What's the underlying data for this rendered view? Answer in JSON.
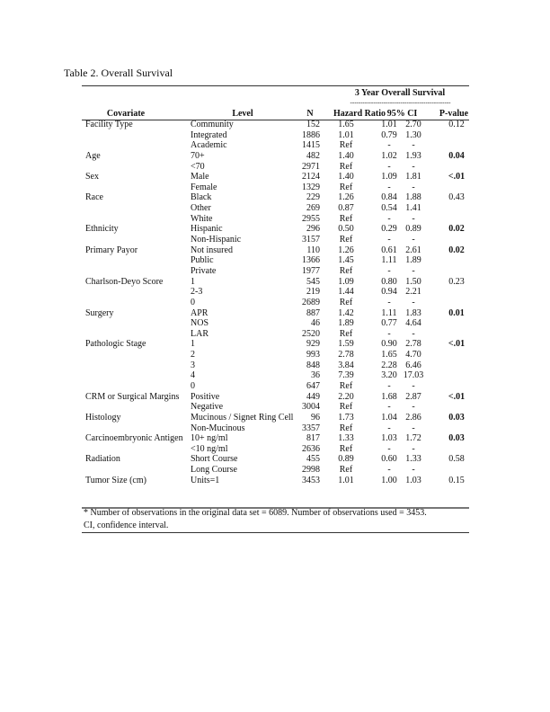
{
  "title": "Table 2. Overall Survival",
  "group_header": "3 Year Overall Survival",
  "group_dashes": "------------------------------------------------",
  "columns": {
    "covariate": "Covariate",
    "level": "Level",
    "n": "N",
    "hr": "Hazard Ratio",
    "ci": "95% CI",
    "p": "P-value"
  },
  "rows": [
    {
      "cov": "Facility Type",
      "level": "Community",
      "n": "152",
      "hr": "1.65",
      "lo": "1.01",
      "hi": "2.70",
      "p": "0.12",
      "bold": false
    },
    {
      "cov": "",
      "level": "Integrated",
      "n": "1886",
      "hr": "1.01",
      "lo": "0.79",
      "hi": "1.30",
      "p": "",
      "bold": false
    },
    {
      "cov": "",
      "level": "Academic",
      "n": "1415",
      "hr": "Ref",
      "lo": "-",
      "hi": "-",
      "p": "",
      "bold": false
    },
    {
      "cov": "Age",
      "level": "70+",
      "n": "482",
      "hr": "1.40",
      "lo": "1.02",
      "hi": "1.93",
      "p": "0.04",
      "bold": true
    },
    {
      "cov": "",
      "level": "<70",
      "n": "2971",
      "hr": "Ref",
      "lo": "-",
      "hi": "-",
      "p": "",
      "bold": false
    },
    {
      "cov": "Sex",
      "level": "Male",
      "n": "2124",
      "hr": "1.40",
      "lo": "1.09",
      "hi": "1.81",
      "p": "<.01",
      "bold": true
    },
    {
      "cov": "",
      "level": "Female",
      "n": "1329",
      "hr": "Ref",
      "lo": "-",
      "hi": "-",
      "p": "",
      "bold": false
    },
    {
      "cov": "Race",
      "level": "Black",
      "n": "229",
      "hr": "1.26",
      "lo": "0.84",
      "hi": "1.88",
      "p": "0.43",
      "bold": false
    },
    {
      "cov": "",
      "level": "Other",
      "n": "269",
      "hr": "0.87",
      "lo": "0.54",
      "hi": "1.41",
      "p": "",
      "bold": false
    },
    {
      "cov": "",
      "level": "White",
      "n": "2955",
      "hr": "Ref",
      "lo": "-",
      "hi": "-",
      "p": "",
      "bold": false
    },
    {
      "cov": "Ethnicity",
      "level": "Hispanic",
      "n": "296",
      "hr": "0.50",
      "lo": "0.29",
      "hi": "0.89",
      "p": "0.02",
      "bold": true
    },
    {
      "cov": "",
      "level": "Non-Hispanic",
      "n": "3157",
      "hr": "Ref",
      "lo": "-",
      "hi": "-",
      "p": "",
      "bold": false
    },
    {
      "cov": "Primary Payor",
      "level": "Not insured",
      "n": "110",
      "hr": "1.26",
      "lo": "0.61",
      "hi": "2.61",
      "p": "0.02",
      "bold": true
    },
    {
      "cov": "",
      "level": "Public",
      "n": "1366",
      "hr": "1.45",
      "lo": "1.11",
      "hi": "1.89",
      "p": "",
      "bold": false
    },
    {
      "cov": "",
      "level": "Private",
      "n": "1977",
      "hr": "Ref",
      "lo": "-",
      "hi": "-",
      "p": "",
      "bold": false
    },
    {
      "cov": "Charlson-Deyo Score",
      "level": "1",
      "n": "545",
      "hr": "1.09",
      "lo": "0.80",
      "hi": "1.50",
      "p": "0.23",
      "bold": false
    },
    {
      "cov": "",
      "level": "2-3",
      "n": "219",
      "hr": "1.44",
      "lo": "0.94",
      "hi": "2.21",
      "p": "",
      "bold": false
    },
    {
      "cov": "",
      "level": "0",
      "n": "2689",
      "hr": "Ref",
      "lo": "-",
      "hi": "-",
      "p": "",
      "bold": false
    },
    {
      "cov": "Surgery",
      "level": "APR",
      "n": "887",
      "hr": "1.42",
      "lo": "1.11",
      "hi": "1.83",
      "p": "0.01",
      "bold": true
    },
    {
      "cov": "",
      "level": "NOS",
      "n": "46",
      "hr": "1.89",
      "lo": "0.77",
      "hi": "4.64",
      "p": "",
      "bold": false
    },
    {
      "cov": "",
      "level": "LAR",
      "n": "2520",
      "hr": "Ref",
      "lo": "-",
      "hi": "-",
      "p": "",
      "bold": false
    },
    {
      "cov": "Pathologic Stage",
      "level": "1",
      "n": "929",
      "hr": "1.59",
      "lo": "0.90",
      "hi": "2.78",
      "p": "<.01",
      "bold": true
    },
    {
      "cov": "",
      "level": "2",
      "n": "993",
      "hr": "2.78",
      "lo": "1.65",
      "hi": "4.70",
      "p": "",
      "bold": false
    },
    {
      "cov": "",
      "level": "3",
      "n": "848",
      "hr": "3.84",
      "lo": "2.28",
      "hi": "6.46",
      "p": "",
      "bold": false
    },
    {
      "cov": "",
      "level": "4",
      "n": "36",
      "hr": "7.39",
      "lo": "3.20",
      "hi": "17.03",
      "p": "",
      "bold": false
    },
    {
      "cov": "",
      "level": "0",
      "n": "647",
      "hr": "Ref",
      "lo": "-",
      "hi": "-",
      "p": "",
      "bold": false
    },
    {
      "cov": "CRM or Surgical Margins",
      "level": "Positive",
      "n": "449",
      "hr": "2.20",
      "lo": "1.68",
      "hi": "2.87",
      "p": "<.01",
      "bold": true
    },
    {
      "cov": "",
      "level": "Negative",
      "n": "3004",
      "hr": "Ref",
      "lo": "-",
      "hi": "-",
      "p": "",
      "bold": false
    },
    {
      "cov": "Histology",
      "level": "Mucinous / Signet Ring Cell",
      "n": "96",
      "hr": "1.73",
      "lo": "1.04",
      "hi": "2.86",
      "p": "0.03",
      "bold": true
    },
    {
      "cov": "",
      "level": "Non-Mucinous",
      "n": "3357",
      "hr": "Ref",
      "lo": "-",
      "hi": "-",
      "p": "",
      "bold": false
    },
    {
      "cov": "Carcinoembryonic Antigen",
      "level": "10+ ng/ml",
      "n": "817",
      "hr": "1.33",
      "lo": "1.03",
      "hi": "1.72",
      "p": "0.03",
      "bold": true
    },
    {
      "cov": "",
      "level": "<10 ng/ml",
      "n": "2636",
      "hr": "Ref",
      "lo": "-",
      "hi": "-",
      "p": "",
      "bold": false
    },
    {
      "cov": "Radiation",
      "level": "Short Course",
      "n": "455",
      "hr": "0.89",
      "lo": "0.60",
      "hi": "1.33",
      "p": "0.58",
      "bold": false
    },
    {
      "cov": "",
      "level": "Long Course",
      "n": "2998",
      "hr": "Ref",
      "lo": "-",
      "hi": "-",
      "p": "",
      "bold": false
    },
    {
      "cov": "Tumor Size (cm)",
      "level": "Units=1",
      "n": "3453",
      "hr": "1.01",
      "lo": "1.00",
      "hi": "1.03",
      "p": "0.15",
      "bold": false
    }
  ],
  "footnotes": [
    "*  Number of observations in the original data set = 6089. Number of observations used = 3453.",
    "CI, confidence interval."
  ]
}
